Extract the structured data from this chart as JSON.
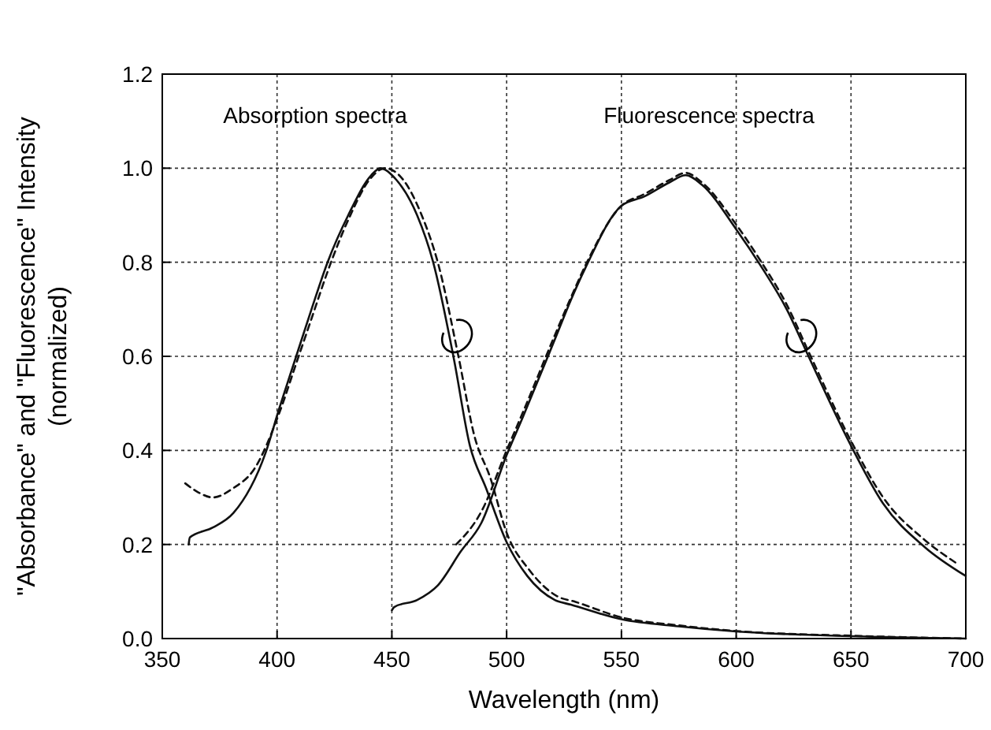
{
  "chart_data": {
    "type": "line",
    "xlabel": "Wavelength (nm)",
    "ylabel": "\"Absorbance\" and \"Fluorescence\" Intensity\n(normalized)",
    "xlim": [
      350,
      700
    ],
    "ylim": [
      0,
      1.2
    ],
    "xticks": [
      350,
      400,
      450,
      500,
      550,
      600,
      650,
      700
    ],
    "yticks": [
      {
        "value": 0,
        "label": "0.0"
      },
      {
        "value": 0.2,
        "label": "0.2"
      },
      {
        "value": 0.4,
        "label": "0.4"
      },
      {
        "value": 0.6,
        "label": "0.6"
      },
      {
        "value": 0.8,
        "label": "0.8"
      },
      {
        "value": 1,
        "label": "1.0"
      },
      {
        "value": 1.2,
        "label": "1.2"
      }
    ],
    "grid": true,
    "annotations": [
      "Absorption spectra",
      "Fluorescence spectra"
    ],
    "series": [
      {
        "color": "#111111",
        "line_style": "solid",
        "x": [
          361.5,
          362,
          372,
          381,
          395,
          401,
          408,
          415,
          422,
          431,
          441,
          445,
          452,
          461,
          468,
          477,
          484,
          491,
          500,
          509,
          521,
          528,
          550,
          575,
          600,
          650,
          700
        ],
        "values": [
          0.2,
          0.215,
          0.236,
          0.267,
          0.395,
          0.49,
          0.595,
          0.7,
          0.8,
          0.9,
          0.985,
          1.0,
          0.975,
          0.9,
          0.8,
          0.595,
          0.41,
          0.32,
          0.205,
          0.133,
          0.082,
          0.072,
          0.041,
          0.026,
          0.015,
          0.005,
          0.0
        ]
      },
      {
        "color": "#111111",
        "line_style": "dashed",
        "x": [
          360,
          366,
          372,
          381,
          390,
          401,
          408,
          415,
          422,
          431,
          441,
          447,
          455,
          463,
          470,
          479,
          486,
          493,
          500,
          510,
          522,
          530,
          550,
          575,
          600,
          650,
          700
        ],
        "values": [
          0.33,
          0.31,
          0.3,
          0.32,
          0.36,
          0.48,
          0.58,
          0.68,
          0.78,
          0.89,
          0.98,
          1.0,
          0.975,
          0.9,
          0.8,
          0.6,
          0.43,
          0.34,
          0.225,
          0.145,
          0.09,
          0.078,
          0.045,
          0.028,
          0.016,
          0.006,
          0.0
        ]
      },
      {
        "color": "#111111",
        "line_style": "solid",
        "x": [
          450,
          451,
          461,
          470,
          480,
          489,
          500,
          507,
          521,
          528,
          534.5,
          550,
          560,
          571,
          578,
          585,
          600,
          611,
          622,
          631.5,
          650,
          664,
          682,
          700
        ],
        "values": [
          0.06,
          0.067,
          0.082,
          0.113,
          0.185,
          0.246,
          0.39,
          0.47,
          0.636,
          0.72,
          0.79,
          0.92,
          0.94,
          0.97,
          0.985,
          0.965,
          0.87,
          0.79,
          0.7,
          0.6,
          0.41,
          0.287,
          0.195,
          0.133
        ]
      },
      {
        "color": "#111111",
        "line_style": "dashed",
        "x": [
          478,
          489,
          500,
          507,
          521,
          528,
          534.5,
          550,
          560,
          571,
          578,
          585,
          600,
          611,
          622,
          631.5,
          650,
          664,
          682,
          696
        ],
        "values": [
          0.2,
          0.27,
          0.4,
          0.48,
          0.645,
          0.725,
          0.795,
          0.92,
          0.945,
          0.975,
          0.99,
          0.97,
          0.88,
          0.8,
          0.71,
          0.61,
          0.42,
          0.3,
          0.21,
          0.16
        ]
      }
    ]
  }
}
